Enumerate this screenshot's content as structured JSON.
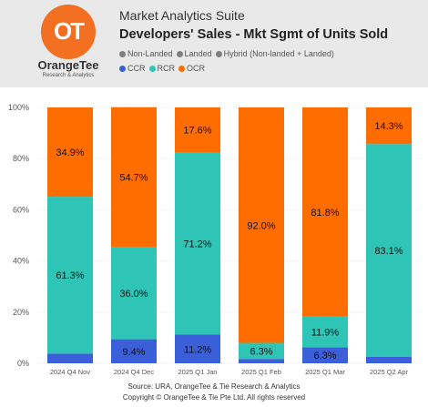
{
  "header": {
    "logo_mark": "OT",
    "brand_name": "OrangeTee",
    "brand_sub": "Research & Analytics",
    "suite_title": "Market Analytics Suite",
    "chart_title": "Developers' Sales - Mkt Sgmt of Units Sold"
  },
  "legend": {
    "row1": [
      {
        "label": "Non-Landed",
        "color": "#7f7f7f"
      },
      {
        "label": "Landed",
        "color": "#7f7f7f"
      },
      {
        "label": "Hybrid (Non-landed + Landed)",
        "color": "#7f7f7f"
      }
    ],
    "row2": [
      {
        "label": "CCR",
        "color": "#3b5fd8"
      },
      {
        "label": "RCR",
        "color": "#2ec4b6"
      },
      {
        "label": "OCR",
        "color": "#ff6d00"
      }
    ]
  },
  "chart_data": {
    "type": "bar",
    "stacked": true,
    "categories": [
      "2024 Q4 Nov",
      "2024 Q4 Dec",
      "2025 Q1 Jan",
      "2025 Q1 Feb",
      "2025 Q1 Mar",
      "2025 Q2 Apr"
    ],
    "series": [
      {
        "name": "CCR",
        "color": "#3b5fd8",
        "values": [
          3.8,
          9.4,
          11.2,
          1.7,
          6.3,
          2.6
        ],
        "labels": [
          "",
          "9.4%",
          "11.2%",
          "",
          "6.3%",
          ""
        ]
      },
      {
        "name": "RCR",
        "color": "#2ec4b6",
        "values": [
          61.3,
          36.0,
          71.2,
          6.3,
          11.9,
          83.1
        ],
        "labels": [
          "61.3%",
          "36.0%",
          "71.2%",
          "6.3%",
          "11.9%",
          "83.1%"
        ]
      },
      {
        "name": "OCR",
        "color": "#ff6d00",
        "values": [
          34.9,
          54.7,
          17.6,
          92.0,
          81.8,
          14.3
        ],
        "labels": [
          "34.9%",
          "54.7%",
          "17.6%",
          "92.0%",
          "81.8%",
          "14.3%"
        ]
      }
    ],
    "yticks": [
      "0%",
      "20%",
      "40%",
      "60%",
      "80%",
      "100%"
    ],
    "ylim": [
      0,
      100
    ],
    "grid": true
  },
  "footer": {
    "line1": "Source: URA, OrangeTee & Tie Research & Analytics",
    "line2": "Copyright © OrangeTee & Tie Pte Ltd. All rights reserved"
  }
}
